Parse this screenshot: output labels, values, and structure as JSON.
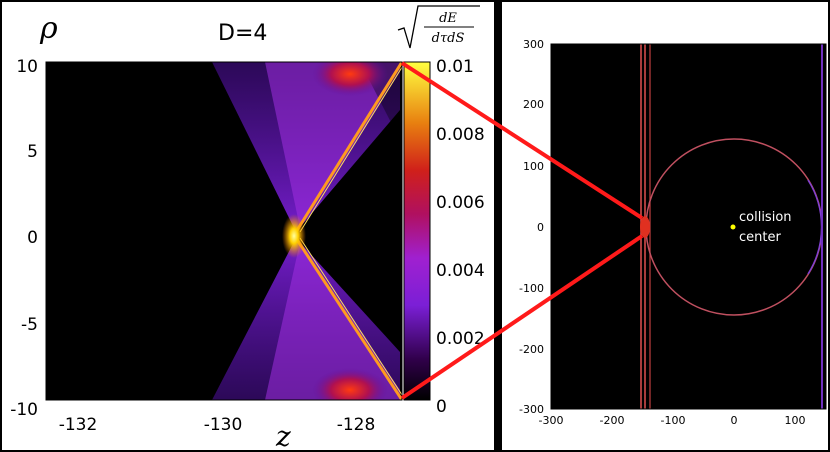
{
  "left_panel": {
    "title": "D=4",
    "y_axis_label": "ρ",
    "x_axis_label": "z",
    "x_ticks": [
      "-132",
      "-130",
      "-128"
    ],
    "y_ticks": [
      "10",
      "5",
      "0",
      "-5",
      "-10"
    ],
    "colorbar_label": {
      "numerator": "dE",
      "denominator": "dτdS"
    },
    "colorbar_ticks": [
      "0.01",
      "0.008",
      "0.006",
      "0.004",
      "0.002",
      "0"
    ]
  },
  "right_panel": {
    "x_ticks": [
      "-300",
      "-200",
      "-100",
      "0",
      "100"
    ],
    "y_ticks": [
      "300",
      "200",
      "100",
      "0",
      "-100",
      "-200",
      "-300"
    ],
    "annotation": {
      "line1": "collision",
      "line2": "center"
    }
  },
  "colors": {
    "zoom_lines": "#ff1a1a",
    "colormap_low": "#000000",
    "colormap_mid": "#8a2be2",
    "colormap_high": "#ffff33",
    "collision_center": "#ffff00"
  }
}
